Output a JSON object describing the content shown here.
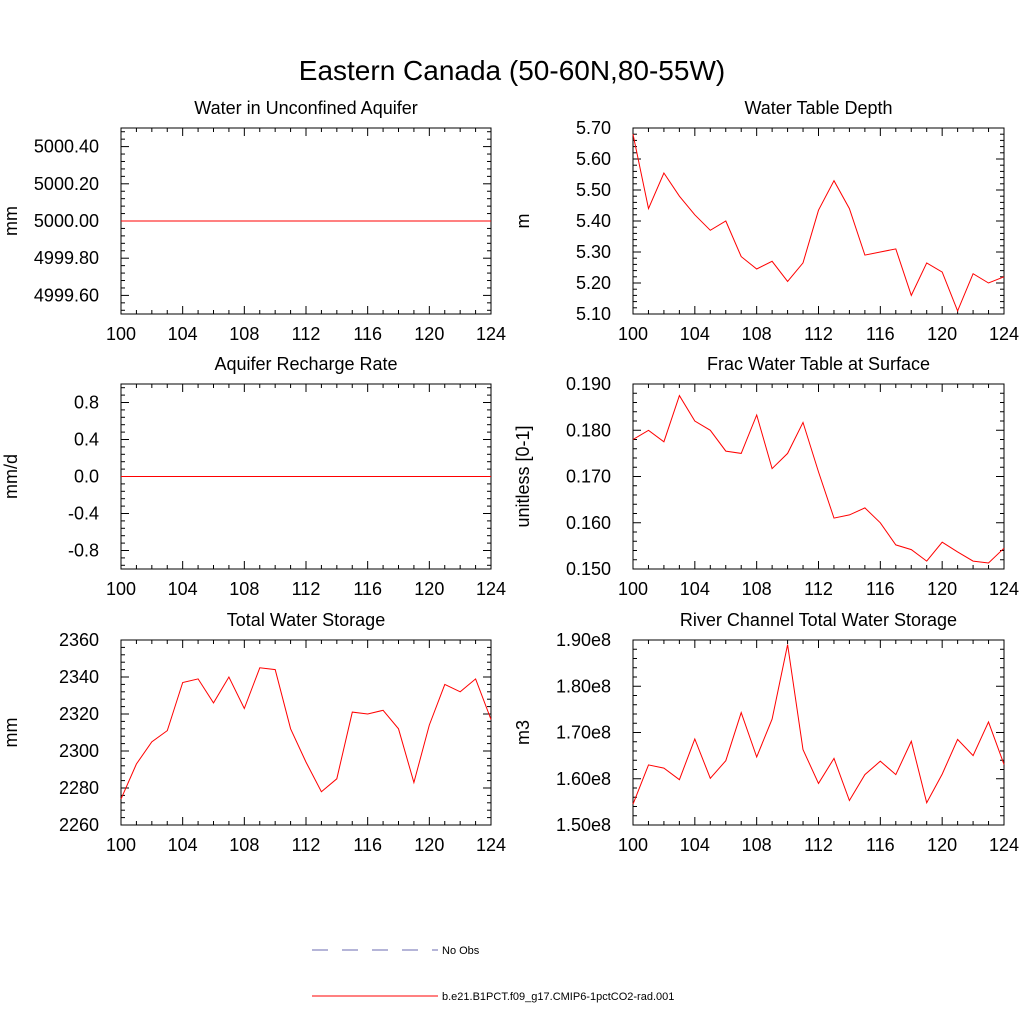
{
  "figure": {
    "title": "Eastern Canada (50-60N,80-55W)",
    "legend": [
      {
        "label": "No Obs",
        "color": "#6b6bb0",
        "style": "dashed"
      },
      {
        "label": "b.e21.B1PCT.f09_g17.CMIP6-1pctCO2-rad.001",
        "color": "#ff0000",
        "style": "solid"
      }
    ]
  },
  "chart_data": [
    {
      "type": "line",
      "title": "Water in Unconfined Aquifer",
      "ylabel": "mm",
      "xlim": [
        100,
        124
      ],
      "ylim": [
        4999.5,
        5000.5
      ],
      "xticks": [
        "100",
        "104",
        "108",
        "112",
        "116",
        "120",
        "124"
      ],
      "yticks": [
        {
          "value": 4999.6,
          "label": "4999.60"
        },
        {
          "value": 4999.8,
          "label": "4999.80"
        },
        {
          "value": 5000.0,
          "label": "5000.00"
        },
        {
          "value": 5000.2,
          "label": "5000.20"
        },
        {
          "value": 5000.4,
          "label": "5000.40"
        }
      ],
      "x": [
        100,
        101,
        102,
        103,
        104,
        105,
        106,
        107,
        108,
        109,
        110,
        111,
        112,
        113,
        114,
        115,
        116,
        117,
        118,
        119,
        120,
        121,
        122,
        123,
        124
      ],
      "series": [
        {
          "color": "#ff0000",
          "values": [
            5000,
            5000,
            5000,
            5000,
            5000,
            5000,
            5000,
            5000,
            5000,
            5000,
            5000,
            5000,
            5000,
            5000,
            5000,
            5000,
            5000,
            5000,
            5000,
            5000,
            5000,
            5000,
            5000,
            5000,
            5000
          ]
        }
      ]
    },
    {
      "type": "line",
      "title": "Water Table Depth",
      "ylabel": "m",
      "xlim": [
        100,
        124
      ],
      "ylim": [
        5.1,
        5.7
      ],
      "xticks": [
        "100",
        "104",
        "108",
        "112",
        "116",
        "120",
        "124"
      ],
      "yticks": [
        {
          "value": 5.1,
          "label": "5.10"
        },
        {
          "value": 5.2,
          "label": "5.20"
        },
        {
          "value": 5.3,
          "label": "5.30"
        },
        {
          "value": 5.4,
          "label": "5.40"
        },
        {
          "value": 5.5,
          "label": "5.50"
        },
        {
          "value": 5.6,
          "label": "5.60"
        },
        {
          "value": 5.7,
          "label": "5.70"
        }
      ],
      "x": [
        100,
        101,
        102,
        103,
        104,
        105,
        106,
        107,
        108,
        109,
        110,
        111,
        112,
        113,
        114,
        115,
        116,
        117,
        118,
        119,
        120,
        121,
        122,
        123,
        124
      ],
      "series": [
        {
          "color": "#ff0000",
          "values": [
            5.68,
            5.44,
            5.555,
            5.48,
            5.42,
            5.37,
            5.4,
            5.285,
            5.245,
            5.27,
            5.205,
            5.265,
            5.435,
            5.53,
            5.44,
            5.29,
            5.3,
            5.31,
            5.16,
            5.265,
            5.235,
            5.11,
            5.23,
            5.2,
            5.22
          ]
        }
      ]
    },
    {
      "type": "line",
      "title": "Aquifer Recharge Rate",
      "ylabel": "mm/d",
      "xlim": [
        100,
        124
      ],
      "ylim": [
        -1.0,
        1.0
      ],
      "xticks": [
        "100",
        "104",
        "108",
        "112",
        "116",
        "120",
        "124"
      ],
      "yticks": [
        {
          "value": -0.8,
          "label": "-0.8"
        },
        {
          "value": -0.4,
          "label": "-0.4"
        },
        {
          "value": 0.0,
          "label": "0.0"
        },
        {
          "value": 0.4,
          "label": "0.4"
        },
        {
          "value": 0.8,
          "label": "0.8"
        }
      ],
      "x": [
        100,
        101,
        102,
        103,
        104,
        105,
        106,
        107,
        108,
        109,
        110,
        111,
        112,
        113,
        114,
        115,
        116,
        117,
        118,
        119,
        120,
        121,
        122,
        123,
        124
      ],
      "series": [
        {
          "color": "#ff0000",
          "values": [
            0,
            0,
            0,
            0,
            0,
            0,
            0,
            0,
            0,
            0,
            0,
            0,
            0,
            0,
            0,
            0,
            0,
            0,
            0,
            0,
            0,
            0,
            0,
            0,
            0
          ]
        }
      ]
    },
    {
      "type": "line",
      "title": "Frac Water Table at Surface",
      "ylabel": "unitless [0-1]",
      "xlim": [
        100,
        124
      ],
      "ylim": [
        0.15,
        0.19
      ],
      "xticks": [
        "100",
        "104",
        "108",
        "112",
        "116",
        "120",
        "124"
      ],
      "yticks": [
        {
          "value": 0.15,
          "label": "0.150"
        },
        {
          "value": 0.16,
          "label": "0.160"
        },
        {
          "value": 0.17,
          "label": "0.170"
        },
        {
          "value": 0.18,
          "label": "0.180"
        },
        {
          "value": 0.19,
          "label": "0.190"
        }
      ],
      "x": [
        100,
        101,
        102,
        103,
        104,
        105,
        106,
        107,
        108,
        109,
        110,
        111,
        112,
        113,
        114,
        115,
        116,
        117,
        118,
        119,
        120,
        121,
        122,
        123,
        124
      ],
      "series": [
        {
          "color": "#ff0000",
          "values": [
            0.178,
            0.18,
            0.1775,
            0.1875,
            0.182,
            0.18,
            0.1755,
            0.175,
            0.1833,
            0.1717,
            0.175,
            0.1817,
            0.171,
            0.161,
            0.1617,
            0.1632,
            0.16,
            0.1552,
            0.1542,
            0.1517,
            0.1558,
            0.1537,
            0.1517,
            0.1513,
            0.1545
          ]
        }
      ]
    },
    {
      "type": "line",
      "title": "Total Water Storage",
      "ylabel": "mm",
      "xlim": [
        100,
        124
      ],
      "ylim": [
        2260,
        2360
      ],
      "xticks": [
        "100",
        "104",
        "108",
        "112",
        "116",
        "120",
        "124"
      ],
      "yticks": [
        {
          "value": 2260,
          "label": "2260"
        },
        {
          "value": 2280,
          "label": "2280"
        },
        {
          "value": 2300,
          "label": "2300"
        },
        {
          "value": 2320,
          "label": "2320"
        },
        {
          "value": 2340,
          "label": "2340"
        },
        {
          "value": 2360,
          "label": "2360"
        }
      ],
      "x": [
        100,
        101,
        102,
        103,
        104,
        105,
        106,
        107,
        108,
        109,
        110,
        111,
        112,
        113,
        114,
        115,
        116,
        117,
        118,
        119,
        120,
        121,
        122,
        123,
        124
      ],
      "series": [
        {
          "color": "#ff0000",
          "values": [
            2274,
            2293,
            2305,
            2311,
            2337,
            2339,
            2326,
            2340,
            2323,
            2345,
            2344,
            2312,
            2294,
            2278,
            2285,
            2321,
            2320,
            2322,
            2312,
            2283,
            2314,
            2336,
            2332,
            2339,
            2317
          ]
        }
      ]
    },
    {
      "type": "line",
      "title": "River Channel Total Water Storage",
      "ylabel": "m3",
      "xlim": [
        100,
        124
      ],
      "ylim": [
        150000000,
        190000000
      ],
      "xticks": [
        "100",
        "104",
        "108",
        "112",
        "116",
        "120",
        "124"
      ],
      "yticks": [
        {
          "value": 150000000,
          "label": "1.50e8"
        },
        {
          "value": 160000000,
          "label": "1.60e8"
        },
        {
          "value": 170000000,
          "label": "1.70e8"
        },
        {
          "value": 180000000,
          "label": "1.80e8"
        },
        {
          "value": 190000000,
          "label": "1.90e8"
        }
      ],
      "x": [
        100,
        101,
        102,
        103,
        104,
        105,
        106,
        107,
        108,
        109,
        110,
        111,
        112,
        113,
        114,
        115,
        116,
        117,
        118,
        119,
        120,
        121,
        122,
        123,
        124
      ],
      "series": [
        {
          "color": "#ff0000",
          "values": [
            154500000,
            163000000,
            162300000,
            159800000,
            168600000,
            160100000,
            163900000,
            174300000,
            164700000,
            172900000,
            189000000,
            166300000,
            159000000,
            164400000,
            155300000,
            160900000,
            163800000,
            160900000,
            168100000,
            154800000,
            161000000,
            168500000,
            165000000,
            172300000,
            163100000
          ]
        }
      ]
    }
  ]
}
